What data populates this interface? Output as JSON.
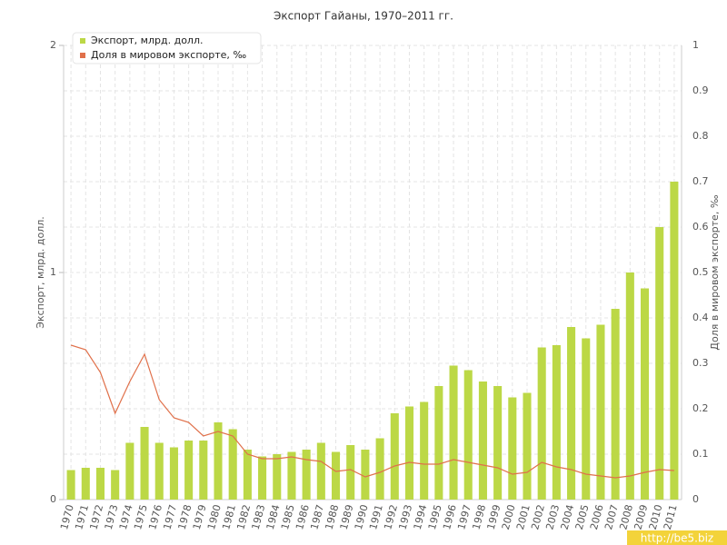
{
  "chart_data": {
    "type": "bar-line",
    "title": "Экспорт Гайаны, 1970–2011 гг.",
    "y_label": "Экспорт, млрд. долл.",
    "y2_label": "Доля в мировом экспорте, ‰",
    "watermark": "http://be5.biz",
    "legend": "top-left",
    "grid": true,
    "categories": [
      "1970",
      "1971",
      "1972",
      "1973",
      "1974",
      "1975",
      "1976",
      "1977",
      "1978",
      "1979",
      "1980",
      "1981",
      "1982",
      "1983",
      "1984",
      "1985",
      "1986",
      "1987",
      "1988",
      "1989",
      "1990",
      "1991",
      "1992",
      "1993",
      "1994",
      "1995",
      "1996",
      "1997",
      "1998",
      "1999",
      "2000",
      "2001",
      "2002",
      "2003",
      "2004",
      "2005",
      "2006",
      "2007",
      "2008",
      "2009",
      "2010",
      "2011"
    ],
    "series": [
      {
        "name": "Экспорт, млрд. долл.",
        "color": "#bcd846",
        "type": "bar",
        "axis": "y",
        "values": [
          0.13,
          0.14,
          0.14,
          0.13,
          0.25,
          0.32,
          0.25,
          0.23,
          0.26,
          0.26,
          0.34,
          0.31,
          0.22,
          0.19,
          0.2,
          0.21,
          0.22,
          0.25,
          0.21,
          0.24,
          0.22,
          0.27,
          0.38,
          0.41,
          0.43,
          0.5,
          0.59,
          0.57,
          0.52,
          0.5,
          0.45,
          0.47,
          0.67,
          0.68,
          0.76,
          0.71,
          0.77,
          0.84,
          1.0,
          0.93,
          1.2,
          1.4
        ]
      },
      {
        "name": "Доля в мировом экспорте, ‰",
        "color": "#e0704a",
        "type": "line",
        "axis": "y2",
        "values": [
          0.34,
          0.33,
          0.28,
          0.19,
          0.26,
          0.32,
          0.22,
          0.18,
          0.17,
          0.14,
          0.15,
          0.14,
          0.1,
          0.09,
          0.09,
          0.094,
          0.088,
          0.084,
          0.062,
          0.066,
          0.05,
          0.06,
          0.074,
          0.082,
          0.078,
          0.078,
          0.088,
          0.082,
          0.076,
          0.07,
          0.056,
          0.06,
          0.082,
          0.072,
          0.066,
          0.056,
          0.052,
          0.048,
          0.052,
          0.06,
          0.066,
          0.064
        ]
      }
    ],
    "ylim": [
      0,
      2
    ],
    "yticks": [
      0,
      1,
      2
    ],
    "y2lim": [
      0,
      1
    ],
    "y2ticks": [
      0,
      0.1,
      0.2,
      0.3,
      0.4,
      0.5,
      0.6,
      0.7,
      0.8,
      0.9,
      1
    ]
  }
}
